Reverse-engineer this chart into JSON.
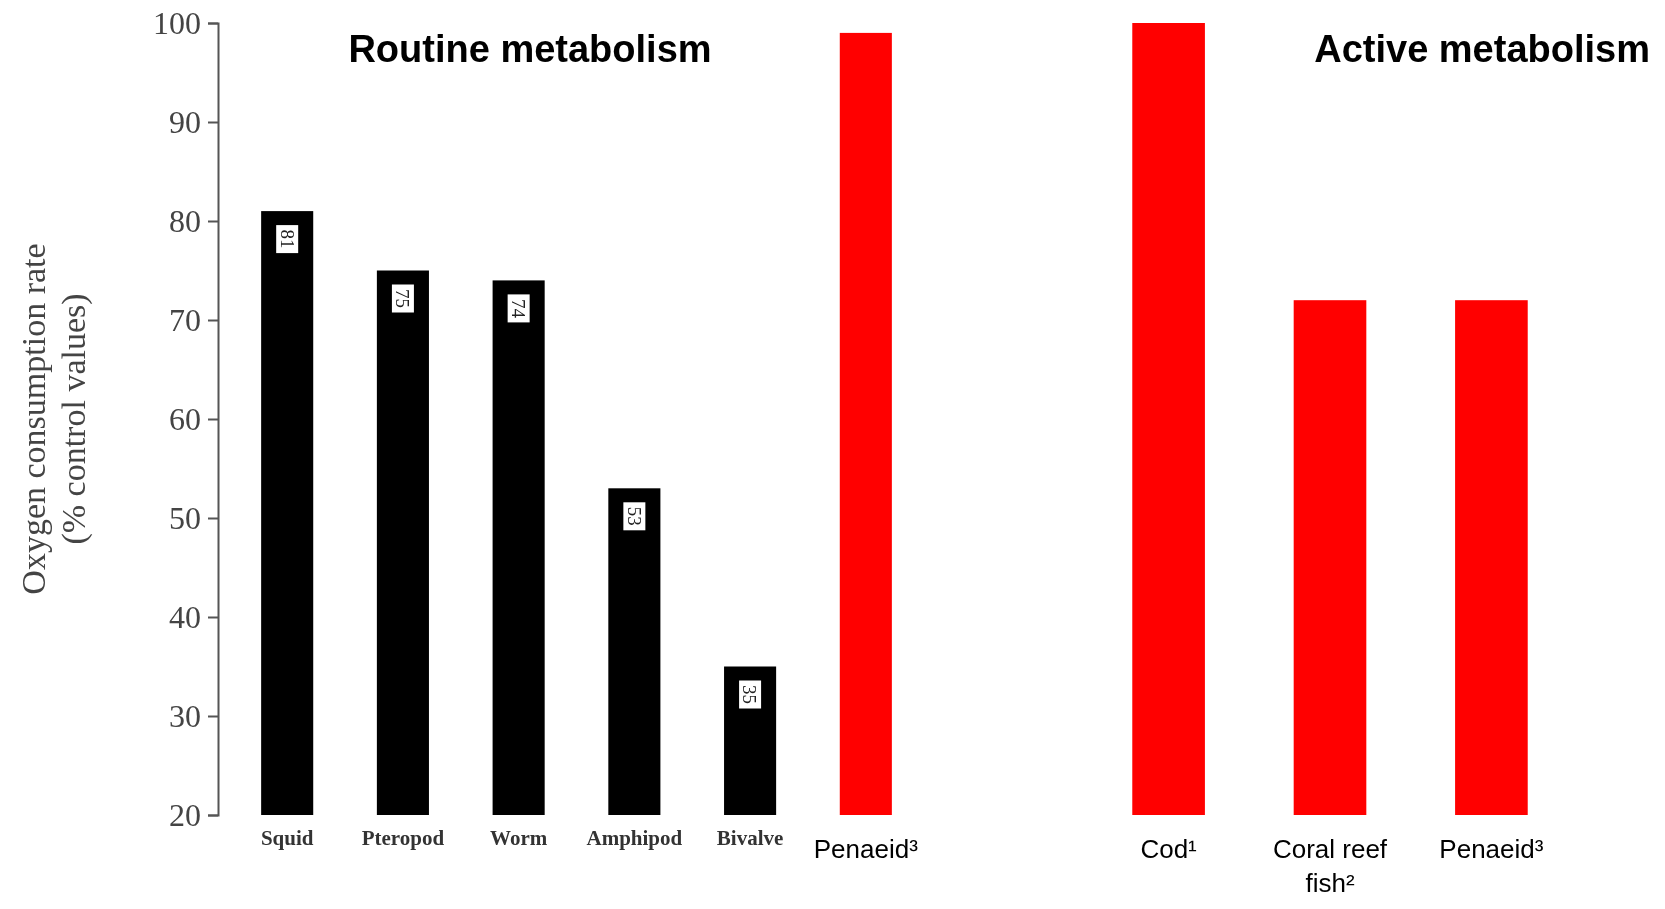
{
  "chart_data": [
    {
      "type": "bar",
      "title": "Routine metabolism",
      "ylabel": "Oxygen consumption rate\n(% control values)",
      "categories": [
        "Squid",
        "Pteropod",
        "Worm",
        "Amphipod",
        "Bivalve",
        "Penaeid³"
      ],
      "values": [
        81,
        75,
        74,
        53,
        35,
        99
      ],
      "colors": [
        "#000000",
        "#000000",
        "#000000",
        "#000000",
        "#000000",
        "#ff0000"
      ],
      "value_labels": [
        "81",
        "75",
        "74",
        "53",
        "35",
        null
      ],
      "ylim": [
        20,
        100
      ],
      "yticks": [
        20,
        30,
        40,
        50,
        60,
        70,
        80,
        90,
        100
      ]
    },
    {
      "type": "bar",
      "title": "Active metabolism",
      "categories": [
        "Cod¹",
        "Coral reef fish²",
        "Penaeid³"
      ],
      "values": [
        100,
        72,
        72
      ],
      "colors": [
        "#ff0000",
        "#ff0000",
        "#ff0000"
      ],
      "ylim": [
        20,
        100
      ],
      "tick_labels": false
    }
  ]
}
